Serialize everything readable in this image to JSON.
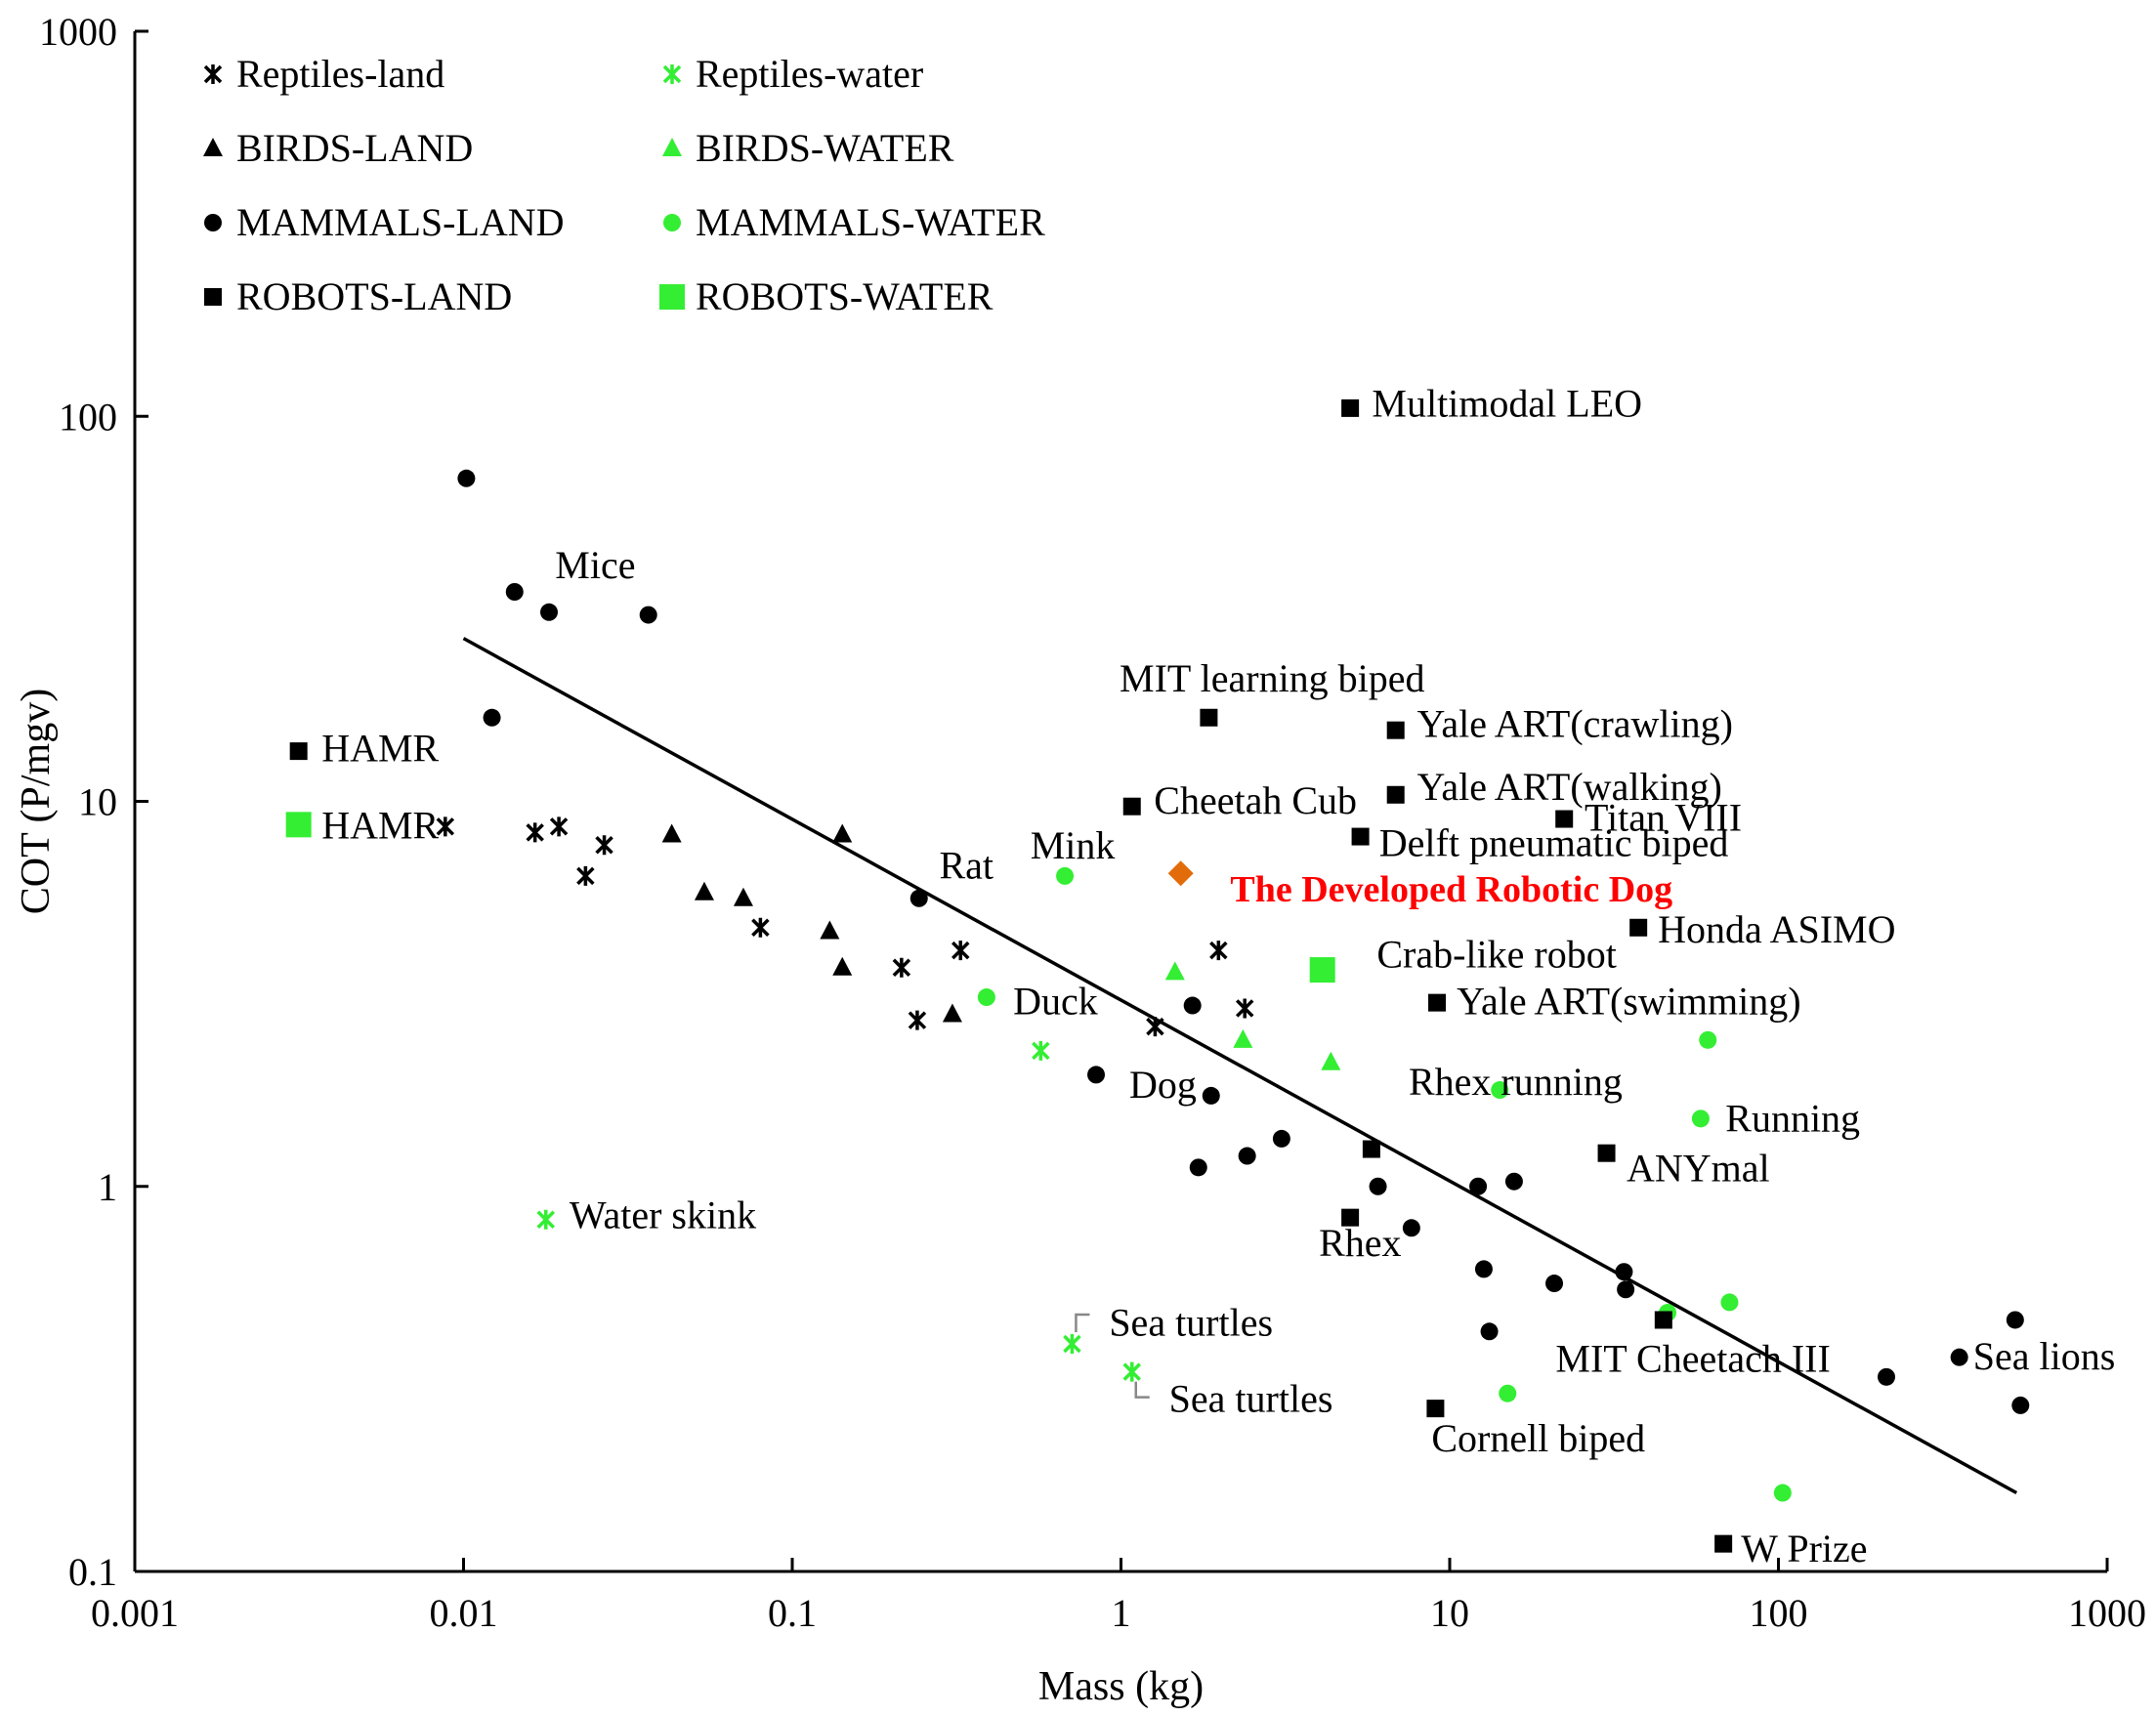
{
  "chart_data": {
    "type": "scatter",
    "xscale": "log",
    "yscale": "log",
    "xlim": [
      0.001,
      1000
    ],
    "ylim": [
      0.1,
      1000
    ],
    "xlabel": "Mass (kg)",
    "ylabel": "COT (P/mgv)",
    "xticks": [
      "0.001",
      "0.01",
      "0.1",
      "1",
      "10",
      "100",
      "1000"
    ],
    "yticks": [
      "0.1",
      "1",
      "10",
      "100",
      "1000"
    ],
    "legend_position": "top-left",
    "colors": {
      "land": "#000000",
      "water": "#33ee33",
      "highlight": "#e36c0a",
      "highlight_text": "#ff0000",
      "leader": "#888888"
    },
    "legend": [
      {
        "label": "Reptiles-land",
        "marker": "asterisk",
        "color": "#000000"
      },
      {
        "label": "Reptiles-water",
        "marker": "asterisk",
        "color": "#33ee33"
      },
      {
        "label": "BIRDS-LAND",
        "marker": "triangle",
        "color": "#000000"
      },
      {
        "label": "BIRDS-WATER",
        "marker": "triangle",
        "color": "#33ee33"
      },
      {
        "label": "MAMMALS-LAND",
        "marker": "circle",
        "color": "#000000"
      },
      {
        "label": "MAMMALS-WATER",
        "marker": "circle",
        "color": "#33ee33"
      },
      {
        "label": "ROBOTS-LAND",
        "marker": "square",
        "color": "#000000"
      },
      {
        "label": "ROBOTS-WATER",
        "marker": "square-large",
        "color": "#33ee33"
      }
    ],
    "trend_line": {
      "x": [
        0.01,
        530
      ],
      "y": [
        26.5,
        0.16
      ]
    },
    "series": [
      {
        "name": "Reptiles-land",
        "marker": "asterisk",
        "color": "#000000",
        "points": [
          [
            0.0088,
            8.6
          ],
          [
            0.0165,
            8.3
          ],
          [
            0.0195,
            8.6
          ],
          [
            0.0235,
            6.4
          ],
          [
            0.0268,
            7.7
          ],
          [
            0.08,
            4.7
          ],
          [
            0.215,
            3.7
          ],
          [
            0.24,
            2.7
          ],
          [
            0.325,
            4.1
          ],
          [
            1.27,
            2.6
          ],
          [
            1.98,
            4.1
          ],
          [
            2.38,
            2.9
          ]
        ]
      },
      {
        "name": "Reptiles-water",
        "marker": "asterisk",
        "color": "#33ee33",
        "points": [
          [
            0.0178,
            0.82
          ],
          [
            0.57,
            2.25
          ],
          [
            0.71,
            0.39
          ],
          [
            1.08,
            0.33
          ]
        ]
      },
      {
        "name": "BIRDS-LAND",
        "marker": "triangle",
        "color": "#000000",
        "points": [
          [
            0.043,
            8.2
          ],
          [
            0.054,
            5.8
          ],
          [
            0.071,
            5.6
          ],
          [
            0.13,
            4.6
          ],
          [
            0.142,
            8.2
          ],
          [
            0.142,
            3.7
          ],
          [
            0.307,
            2.8
          ]
        ]
      },
      {
        "name": "BIRDS-WATER",
        "marker": "triangle",
        "color": "#33ee33",
        "points": [
          [
            1.46,
            3.6
          ],
          [
            2.35,
            2.4
          ],
          [
            4.35,
            2.1
          ]
        ]
      },
      {
        "name": "MAMMALS-LAND",
        "marker": "circle",
        "color": "#000000",
        "points": [
          [
            0.0102,
            69
          ],
          [
            0.0122,
            16.5
          ],
          [
            0.0143,
            35
          ],
          [
            0.0182,
            31
          ],
          [
            0.0365,
            30.5
          ],
          [
            0.243,
            5.6
          ],
          [
            0.84,
            1.95
          ],
          [
            1.65,
            2.95
          ],
          [
            1.72,
            1.12
          ],
          [
            1.88,
            1.72
          ],
          [
            2.42,
            1.2
          ],
          [
            3.08,
            1.33
          ],
          [
            6.05,
            1.0
          ],
          [
            7.65,
            0.78
          ],
          [
            12.2,
            1.0
          ],
          [
            12.7,
            0.61
          ],
          [
            13.2,
            0.42
          ],
          [
            15.7,
            1.03
          ],
          [
            20.8,
            0.56
          ],
          [
            33.9,
            0.6
          ],
          [
            34.3,
            0.54
          ],
          [
            213,
            0.32
          ],
          [
            355,
            0.36
          ],
          [
            525,
            0.45
          ],
          [
            545,
            0.27
          ]
        ]
      },
      {
        "name": "MAMMALS-WATER",
        "marker": "circle",
        "color": "#33ee33",
        "points": [
          [
            0.39,
            3.1
          ],
          [
            0.675,
            6.4
          ],
          [
            14.2,
            1.78
          ],
          [
            15.0,
            0.29
          ],
          [
            46,
            0.47
          ],
          [
            58,
            1.5
          ],
          [
            61,
            2.4
          ],
          [
            71,
            0.5
          ],
          [
            103,
            0.16
          ]
        ]
      },
      {
        "name": "ROBOTS-LAND",
        "marker": "square",
        "color": "#000000",
        "points": [
          [
            0.00315,
            13.5
          ],
          [
            1.08,
            9.7
          ],
          [
            1.85,
            16.5
          ],
          [
            4.98,
            105
          ],
          [
            4.98,
            0.83
          ],
          [
            5.35,
            8.1
          ],
          [
            5.78,
            1.25
          ],
          [
            6.85,
            10.4
          ],
          [
            6.85,
            15.3
          ],
          [
            9.05,
            0.265
          ],
          [
            9.15,
            3.0
          ],
          [
            22.3,
            9.0
          ],
          [
            30,
            1.22
          ],
          [
            37.5,
            4.7
          ],
          [
            44.7,
            0.45
          ],
          [
            68,
            0.118
          ]
        ]
      },
      {
        "name": "ROBOTS-WATER",
        "marker": "square-large",
        "color": "#33ee33",
        "points": [
          [
            0.00315,
            8.7
          ],
          [
            4.1,
            3.65
          ]
        ]
      },
      {
        "name": "The Developed Robotic Dog",
        "marker": "diamond",
        "color": "#e36c0a",
        "points": [
          [
            1.52,
            6.5
          ]
        ]
      }
    ],
    "annotations": [
      {
        "text": "Mice",
        "x": 0.019,
        "y": 38
      },
      {
        "text": "HAMR",
        "x": 0.0037,
        "y": 12.7
      },
      {
        "text": "HAMR",
        "x": 0.0037,
        "y": 8.0
      },
      {
        "text": "Rat",
        "x": 0.28,
        "y": 6.3
      },
      {
        "text": "Mink",
        "x": 0.53,
        "y": 7.1
      },
      {
        "text": "Duck",
        "x": 0.47,
        "y": 2.8
      },
      {
        "text": "Dog",
        "x": 1.06,
        "y": 1.7
      },
      {
        "text": "Water skink",
        "x": 0.021,
        "y": 0.78
      },
      {
        "text": "Sea turtles",
        "x": 0.92,
        "y": 0.41
      },
      {
        "text": "Sea turtles",
        "x": 1.4,
        "y": 0.26
      },
      {
        "text": "Multimodal LEO",
        "x": 5.8,
        "y": 100
      },
      {
        "text": "MIT learning biped",
        "x": 0.99,
        "y": 19.3
      },
      {
        "text": "Yale ART(crawling)",
        "x": 7.95,
        "y": 14.7
      },
      {
        "text": "Yale ART(walking)",
        "x": 7.95,
        "y": 10.1
      },
      {
        "text": "Cheetah Cub",
        "x": 1.26,
        "y": 9.3
      },
      {
        "text": "Titan VIII",
        "x": 25.7,
        "y": 8.4
      },
      {
        "text": "Delft pneumatic biped",
        "x": 6.1,
        "y": 7.2
      },
      {
        "text": "The Developed Robotic Dog",
        "x": 2.15,
        "y": 5.5
      },
      {
        "text": "Crab-like robot",
        "x": 6.0,
        "y": 3.7
      },
      {
        "text": "Honda ASIMO",
        "x": 43,
        "y": 4.3
      },
      {
        "text": "Yale ART(swimming)",
        "x": 10.5,
        "y": 2.8
      },
      {
        "text": "Rhex running",
        "x": 7.5,
        "y": 1.73
      },
      {
        "text": "Running",
        "x": 69,
        "y": 1.39
      },
      {
        "text": "ANYmal",
        "x": 34.5,
        "y": 1.03
      },
      {
        "text": "Rhex",
        "x": 4.0,
        "y": 0.66
      },
      {
        "text": "MIT Cheetach III",
        "x": 21,
        "y": 0.33
      },
      {
        "text": "Sea lions",
        "x": 391,
        "y": 0.335
      },
      {
        "text": "Cornell biped",
        "x": 8.8,
        "y": 0.205
      },
      {
        "text": "W Prize",
        "x": 77,
        "y": 0.106
      }
    ]
  }
}
